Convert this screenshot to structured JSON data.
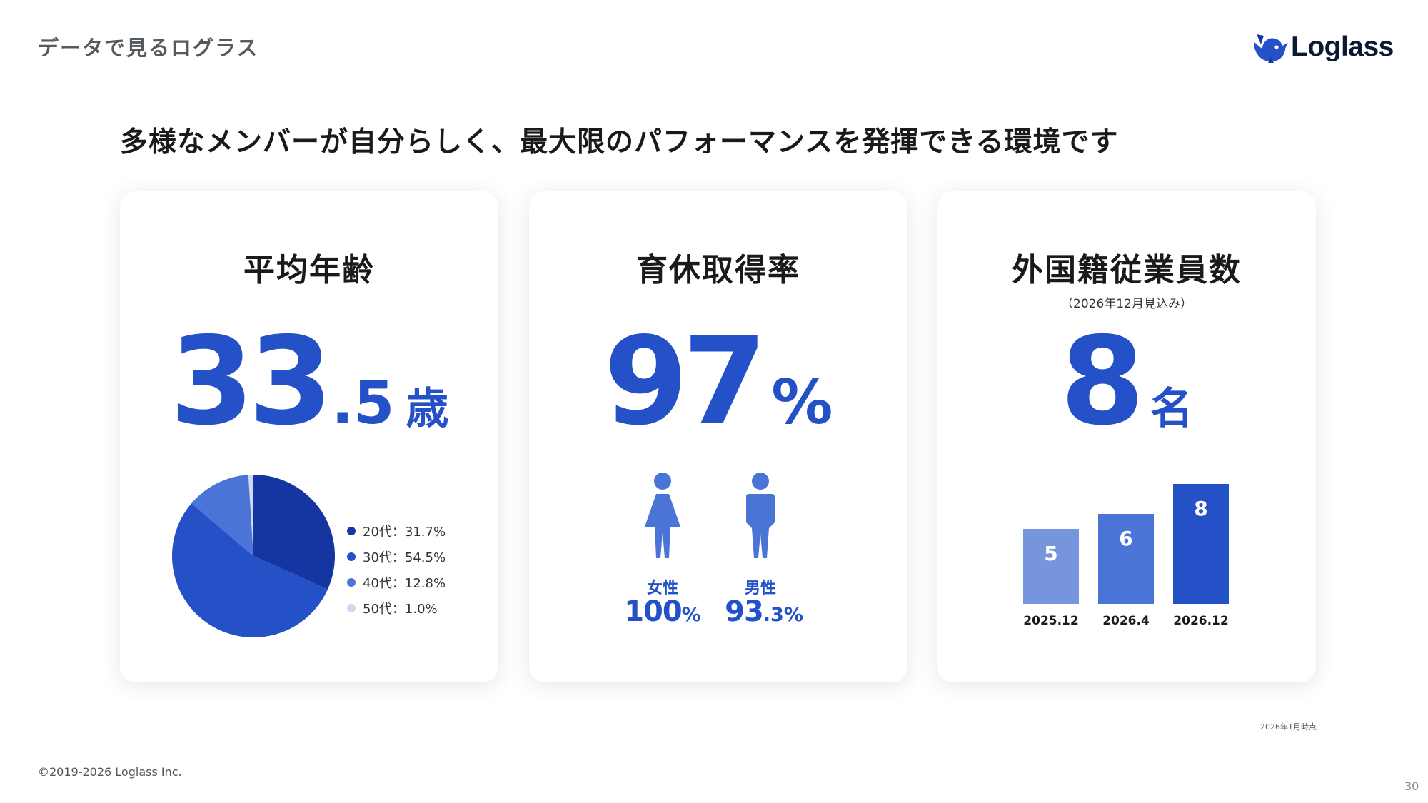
{
  "header": {
    "section_label": "データで見るログラス",
    "logo_text": "Loglass",
    "logo_icon": "whale-logo-icon"
  },
  "headline": "多様なメンバーが自分らしく、最大限のパフォーマンスを発揮できる環境です",
  "cards": {
    "age": {
      "title": "平均年齢",
      "value_int": "33",
      "value_dec": ".5",
      "unit": "歳",
      "legend": [
        {
          "label": "20代：31.7%",
          "color": "#1535a0"
        },
        {
          "label": "30代：54.5%",
          "color": "#2450c8"
        },
        {
          "label": "40代：12.8%",
          "color": "#4a74d6"
        },
        {
          "label": "50代：1.0%",
          "color": "#cddaf4"
        }
      ]
    },
    "leave": {
      "title": "育休取得率",
      "value": "97",
      "unit": "%",
      "female": {
        "label": "女性",
        "value_big": "100",
        "value_small": "%",
        "icon": "female-person-icon"
      },
      "male": {
        "label": "男性",
        "value_big": "93",
        "value_small": ".3%",
        "icon": "male-person-icon"
      }
    },
    "foreign": {
      "title": "外国籍従業員数",
      "subtitle": "（2026年12月見込み）",
      "value": "8",
      "unit": "名"
    }
  },
  "chart_data": [
    {
      "type": "pie",
      "categories": [
        "20代",
        "30代",
        "40代",
        "50代"
      ],
      "values": [
        31.7,
        54.5,
        12.8,
        1.0
      ],
      "colors": [
        "#1535a0",
        "#2450c8",
        "#4a74d6",
        "#cddaf4"
      ],
      "legend_position": "right"
    },
    {
      "type": "bar",
      "categories": [
        "2025.12",
        "2026.4",
        "2026.12"
      ],
      "values": [
        5,
        6,
        8
      ],
      "colors": [
        "#7795dc",
        "#4a74d6",
        "#2450c8"
      ],
      "ylim": [
        0,
        8
      ]
    }
  ],
  "footer": {
    "note": "2026年1月時点",
    "copyright": "©2019-2026 Loglass Inc.",
    "page_number": "30"
  }
}
